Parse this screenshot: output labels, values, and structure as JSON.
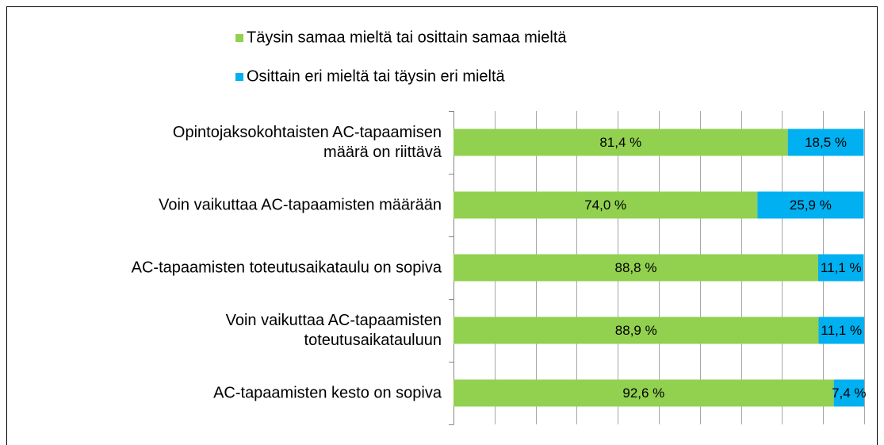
{
  "chart_data": {
    "type": "stacked_barh",
    "categories": [
      "Opintojaksokohtaisten AC-tapaamisen\nmäärä on riittävä",
      "Voin vaikuttaa AC-tapaamisten määrään",
      "AC-tapaamisten toteutusaikataulu on sopiva",
      "Voin vaikuttaa AC-tapaamisten\ntoteutusaikatauluun",
      "AC-tapaamisten kesto on sopiva"
    ],
    "series": [
      {
        "name": "Täysin samaa mieltä tai osittain samaa mieltä",
        "color": "#92d050",
        "values": [
          81.4,
          74.0,
          88.8,
          88.9,
          92.6
        ],
        "value_labels": [
          "81,4 %",
          "74,0 %",
          "88,8 %",
          "88,9 %",
          "92,6 %"
        ]
      },
      {
        "name": "Osittain eri mieltä tai täysin eri mieltä",
        "color": "#00b0f0",
        "values": [
          18.5,
          25.9,
          11.1,
          11.1,
          7.4
        ],
        "value_labels": [
          "18,5 %",
          "25,9 %",
          "11,1 %",
          "11,1 %",
          "7,4 %"
        ]
      }
    ],
    "xlim": [
      0,
      100
    ],
    "xticks": [
      0,
      10,
      20,
      30,
      40,
      50,
      60,
      70,
      80,
      90,
      100
    ],
    "grid": true,
    "legend": "top"
  }
}
